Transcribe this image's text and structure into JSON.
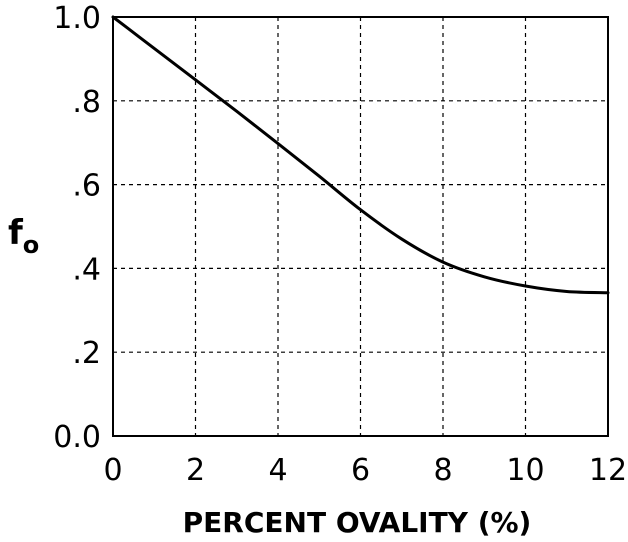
{
  "chart_data": {
    "type": "line",
    "title": "",
    "xlabel": "PERCENT OVALITY (%)",
    "ylabel": {
      "main": "f",
      "sub": "o"
    },
    "xlim": [
      0,
      12
    ],
    "ylim": [
      0,
      1
    ],
    "grid": true,
    "x_ticks": [
      0,
      2,
      4,
      6,
      8,
      10,
      12
    ],
    "x_tick_labels": [
      "0",
      "2",
      "4",
      "6",
      "8",
      "10",
      "12"
    ],
    "y_ticks": [
      0,
      0.2,
      0.4,
      0.6,
      0.8,
      1.0
    ],
    "y_tick_labels": [
      "0.0",
      ".2",
      ".4",
      ".6",
      ".8",
      "1.0"
    ],
    "series": [
      {
        "x": [
          0,
          1,
          2,
          3,
          4,
          5,
          6,
          7,
          8,
          9,
          10,
          11,
          12
        ],
        "y": [
          1.0,
          0.925,
          0.85,
          0.775,
          0.698,
          0.62,
          0.54,
          0.47,
          0.415,
          0.38,
          0.358,
          0.345,
          0.342
        ]
      }
    ]
  }
}
